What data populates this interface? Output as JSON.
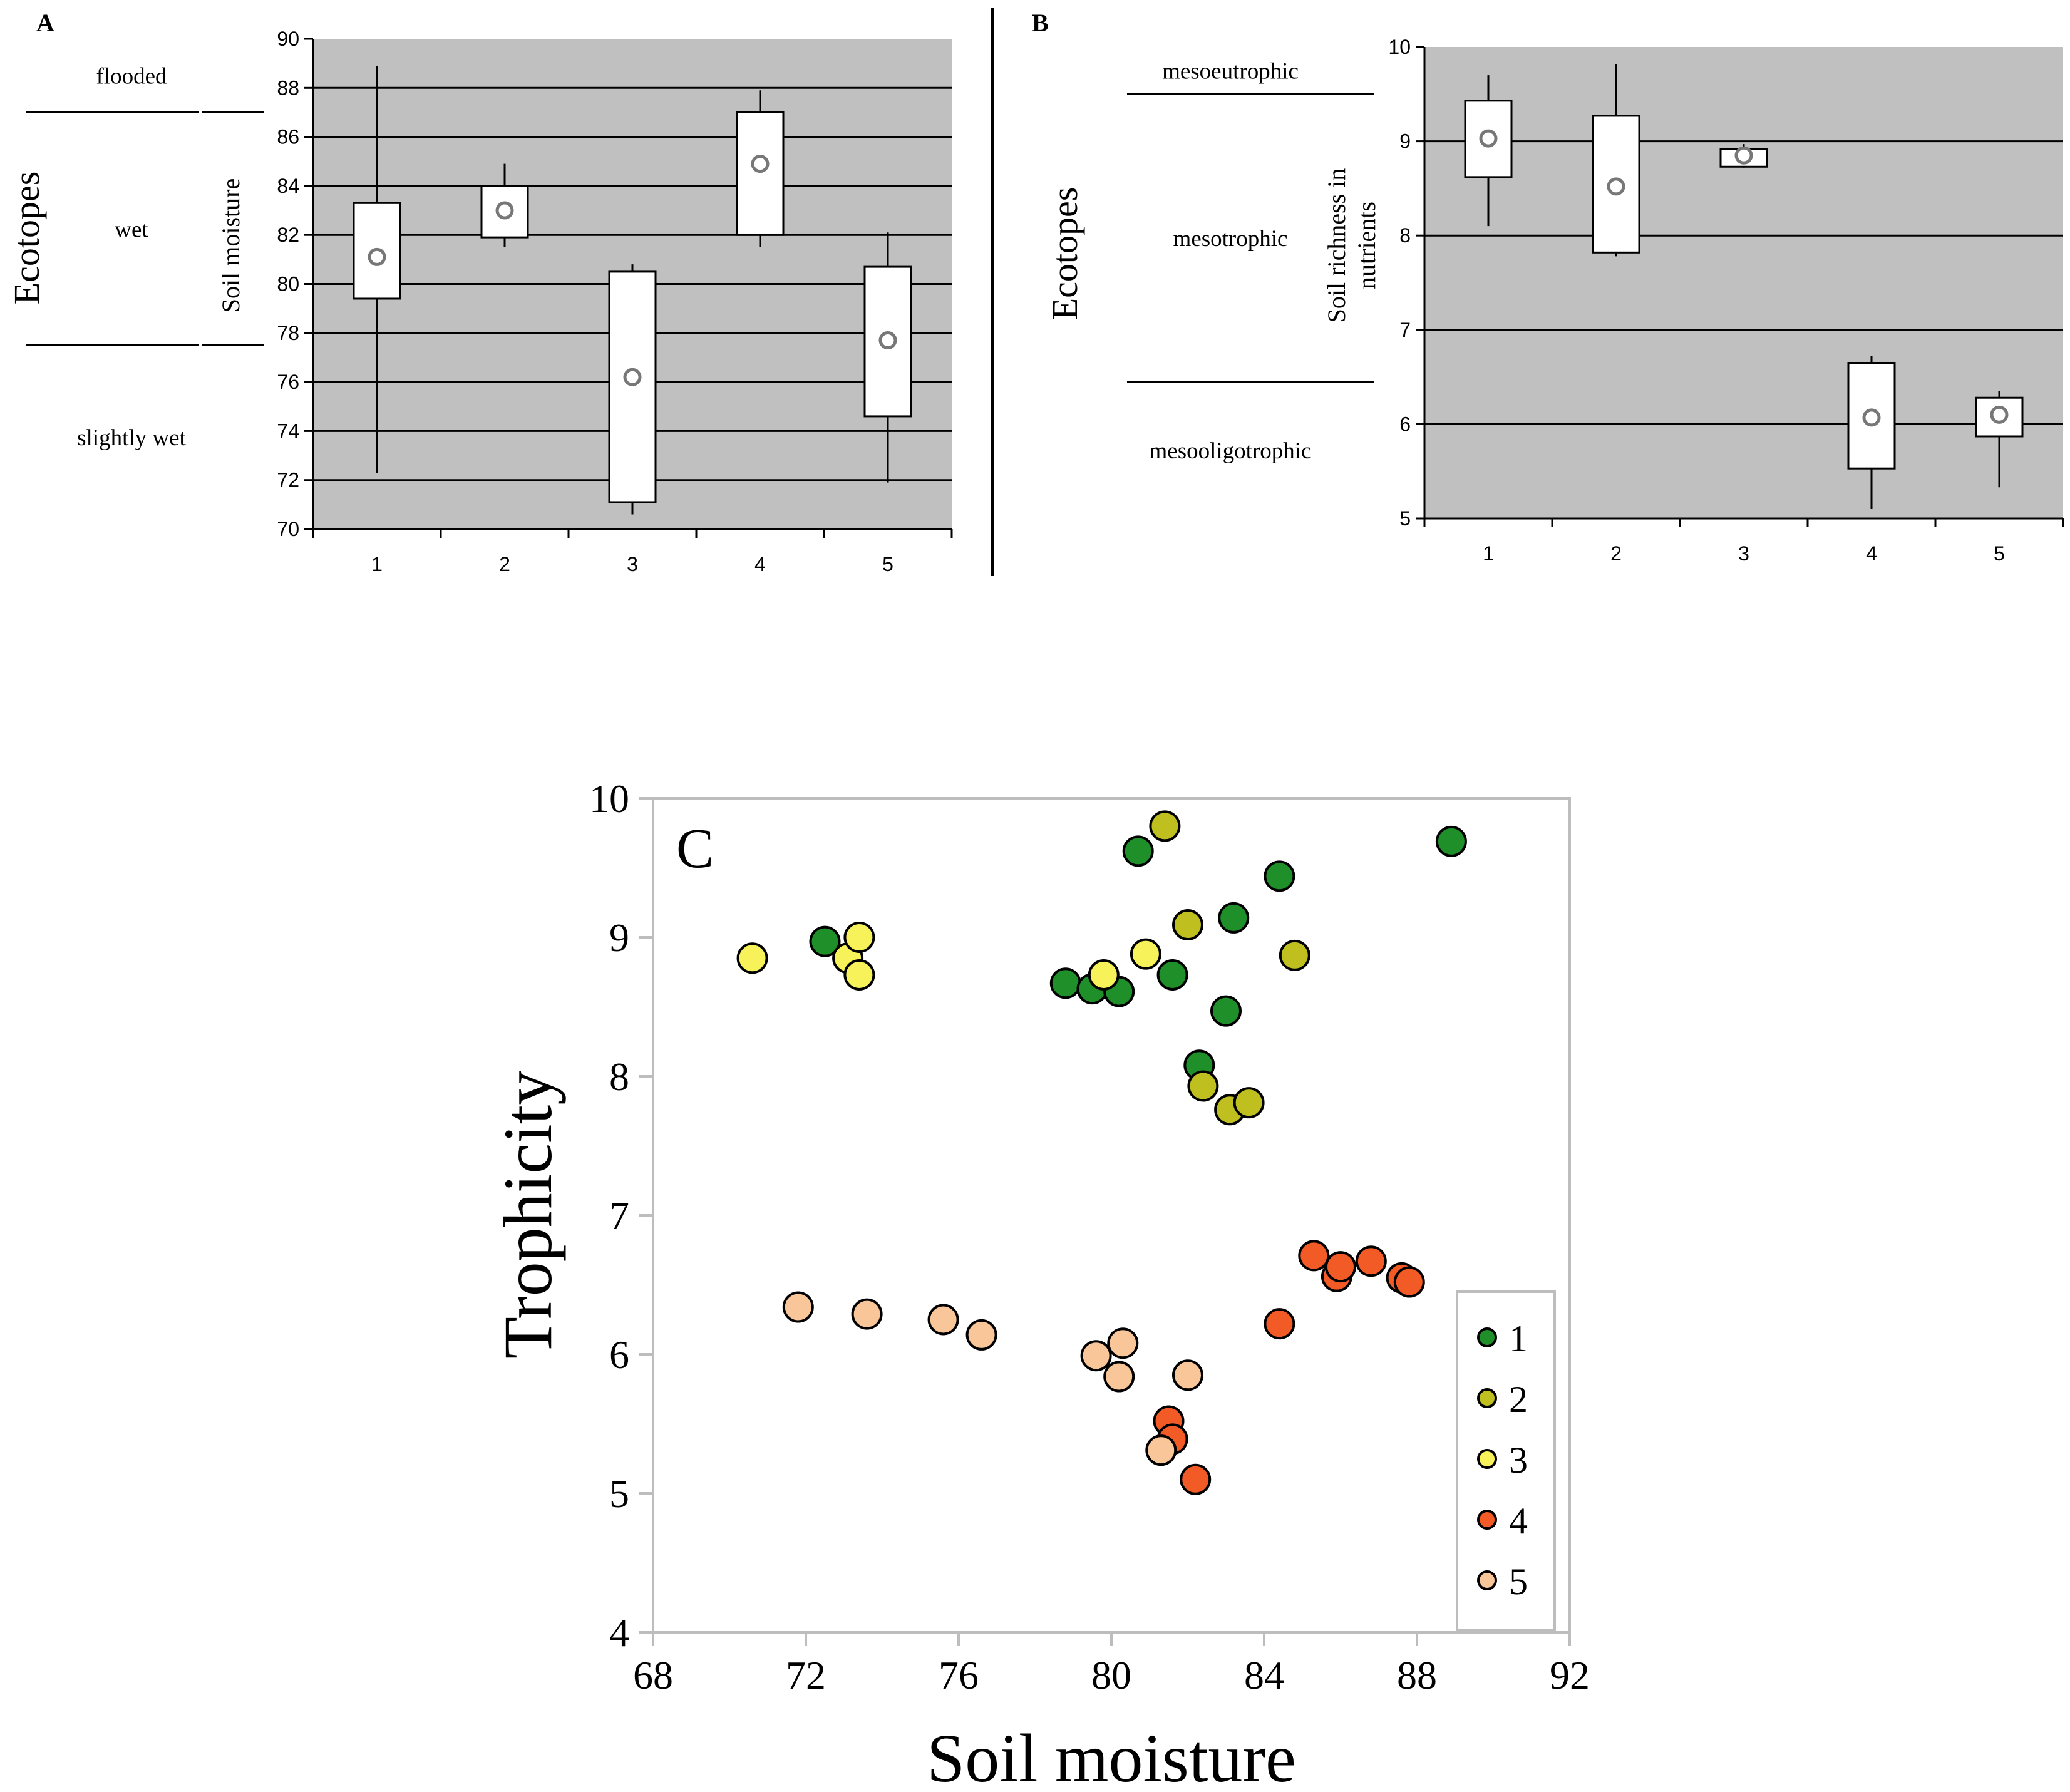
{
  "chart_data": [
    {
      "panel": "A",
      "type": "box",
      "ylabel": "Soil moisture",
      "side_label": "Ecotopes",
      "ylim": [
        70,
        90
      ],
      "yticks": [
        70,
        72,
        74,
        76,
        78,
        80,
        82,
        84,
        86,
        88,
        90
      ],
      "categories": [
        "1",
        "2",
        "3",
        "4",
        "5"
      ],
      "boxes": [
        {
          "min": 72.3,
          "q1": 79.4,
          "median": 81.1,
          "q3": 83.3,
          "max": 88.9
        },
        {
          "min": 81.5,
          "q1": 81.9,
          "median": 83.0,
          "q3": 84.0,
          "max": 84.9
        },
        {
          "min": 70.6,
          "q1": 71.1,
          "median": 76.2,
          "q3": 80.5,
          "max": 80.8
        },
        {
          "min": 81.5,
          "q1": 82.0,
          "median": 84.9,
          "q3": 87.0,
          "max": 87.9
        },
        {
          "min": 71.9,
          "q1": 74.6,
          "median": 77.7,
          "q3": 80.7,
          "max": 82.1
        }
      ],
      "zones": [
        {
          "label": "flooded",
          "from": 87.0,
          "to": 90.0
        },
        {
          "label": "wet",
          "from": 77.5,
          "to": 87.0
        },
        {
          "label": "slightly wet",
          "from": 70.0,
          "to": 77.5
        }
      ]
    },
    {
      "panel": "B",
      "type": "box",
      "ylabel_line1": "Soil richness in",
      "ylabel_line2": "nutrients",
      "side_label": "Ecotopes",
      "ylim": [
        5,
        10
      ],
      "yticks": [
        5,
        6,
        7,
        8,
        9,
        10
      ],
      "categories": [
        "1",
        "2",
        "3",
        "4",
        "5"
      ],
      "boxes": [
        {
          "min": 8.1,
          "q1": 8.62,
          "median": 9.03,
          "q3": 9.43,
          "max": 9.7
        },
        {
          "min": 7.78,
          "q1": 7.82,
          "median": 8.52,
          "q3": 9.27,
          "max": 9.82
        },
        {
          "min": 8.72,
          "q1": 8.73,
          "median": 8.85,
          "q3": 8.92,
          "max": 8.97
        },
        {
          "min": 5.1,
          "q1": 5.53,
          "median": 6.07,
          "q3": 6.65,
          "max": 6.72
        },
        {
          "min": 5.33,
          "q1": 5.87,
          "median": 6.1,
          "q3": 6.28,
          "max": 6.35
        }
      ],
      "zones": [
        {
          "label": "mesoeutrophic",
          "from": 9.5,
          "to": 10.0
        },
        {
          "label": "mesotrophic",
          "from": 6.45,
          "to": 9.5
        },
        {
          "label": "mesooligotrophic",
          "from": 5.0,
          "to": 6.45
        }
      ]
    },
    {
      "panel": "C",
      "type": "scatter",
      "xlabel": "Soil moisture",
      "ylabel": "Trophicity",
      "xlim": [
        68,
        92
      ],
      "ylim": [
        4,
        10
      ],
      "xticks": [
        68,
        72,
        76,
        80,
        84,
        88,
        92
      ],
      "yticks": [
        4,
        5,
        6,
        7,
        8,
        9,
        10
      ],
      "legend_position": "bottom-right",
      "series": [
        {
          "name": "1",
          "color": "#1f8f2a",
          "points": [
            [
              72.5,
              8.97
            ],
            [
              78.8,
              8.67
            ],
            [
              79.5,
              8.63
            ],
            [
              80.2,
              8.61
            ],
            [
              80.7,
              9.62
            ],
            [
              81.6,
              8.73
            ],
            [
              82.3,
              8.08
            ],
            [
              83.0,
              8.47
            ],
            [
              83.2,
              9.14
            ],
            [
              84.4,
              9.44
            ],
            [
              88.9,
              9.69
            ]
          ]
        },
        {
          "name": "2",
          "color": "#bfbf1f",
          "points": [
            [
              81.4,
              9.8
            ],
            [
              82.0,
              9.09
            ],
            [
              82.4,
              7.93
            ],
            [
              83.1,
              7.76
            ],
            [
              83.6,
              7.81
            ],
            [
              84.8,
              8.87
            ]
          ]
        },
        {
          "name": "3",
          "color": "#f8f25a",
          "points": [
            [
              70.6,
              8.85
            ],
            [
              73.1,
              8.85
            ],
            [
              73.4,
              9.0
            ],
            [
              73.4,
              8.73
            ],
            [
              79.8,
              8.73
            ],
            [
              80.9,
              8.88
            ]
          ]
        },
        {
          "name": "4",
          "color": "#f25a26",
          "points": [
            [
              81.5,
              5.52
            ],
            [
              81.6,
              5.39
            ],
            [
              82.2,
              5.1
            ],
            [
              84.4,
              6.22
            ],
            [
              85.3,
              6.71
            ],
            [
              85.9,
              6.56
            ],
            [
              86.0,
              6.63
            ],
            [
              86.8,
              6.67
            ],
            [
              87.6,
              6.55
            ],
            [
              87.8,
              6.52
            ]
          ]
        },
        {
          "name": "5",
          "color": "#f9c69a",
          "points": [
            [
              71.8,
              6.34
            ],
            [
              73.6,
              6.29
            ],
            [
              75.6,
              6.25
            ],
            [
              76.6,
              6.14
            ],
            [
              79.6,
              5.99
            ],
            [
              80.2,
              5.84
            ],
            [
              80.3,
              6.08
            ],
            [
              81.3,
              5.31
            ],
            [
              82.0,
              5.85
            ]
          ]
        }
      ]
    }
  ]
}
